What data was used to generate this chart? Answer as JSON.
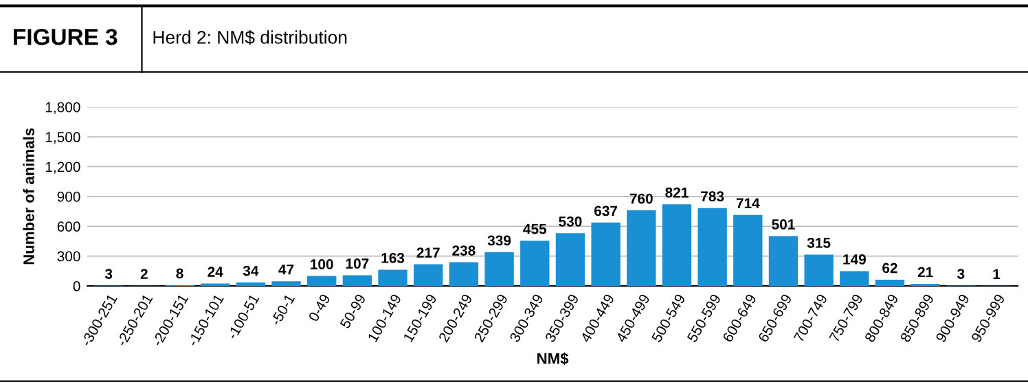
{
  "chart_data": {
    "type": "bar",
    "title": "FIGURE 3",
    "subtitle": "Herd 2: NM$ distribution",
    "xlabel": "NM$",
    "ylabel": "Number of animals",
    "categories": [
      "-300-251",
      "-250-201",
      "-200-151",
      "-150-101",
      "-100-51",
      "-50-1",
      "0-49",
      "50-99",
      "100-149",
      "150-199",
      "200-249",
      "250-299",
      "300-349",
      "350-399",
      "400-449",
      "450-499",
      "500-549",
      "550-599",
      "600-649",
      "650-699",
      "700-749",
      "750-799",
      "800-849",
      "850-899",
      "900-949",
      "950-999"
    ],
    "values": [
      3,
      2,
      8,
      24,
      34,
      47,
      100,
      107,
      163,
      217,
      238,
      339,
      455,
      530,
      637,
      760,
      821,
      783,
      714,
      501,
      315,
      149,
      62,
      21,
      3,
      1
    ],
    "color": "#1b8fd4",
    "ylim": [
      0,
      1800
    ],
    "yticks": [
      0,
      300,
      600,
      900,
      {
        "value": 1200,
        "label": "1,200"
      },
      {
        "value": 1500,
        "label": "1,500"
      },
      {
        "value": 1800,
        "label": "1,800"
      }
    ],
    "grid": "y",
    "data_labels": true
  }
}
